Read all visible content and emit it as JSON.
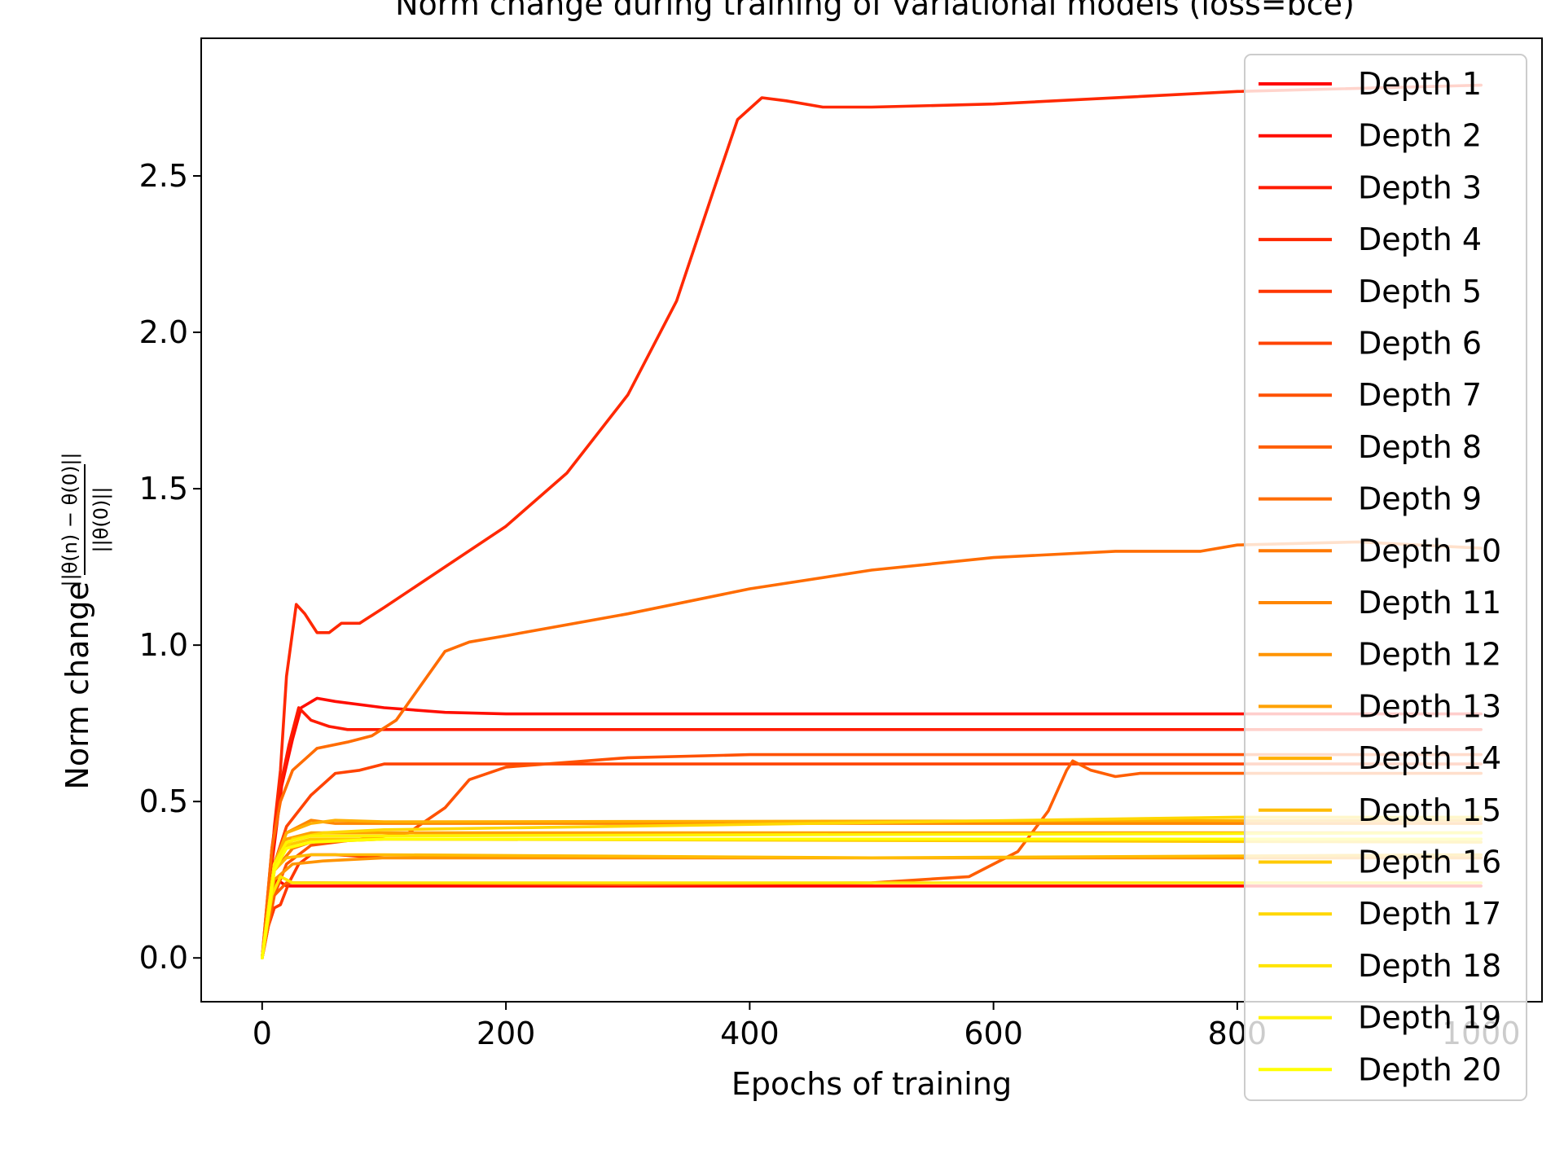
{
  "chart_data": {
    "type": "line",
    "title": "Norm change during training of variational models (loss=bce)",
    "xlabel": "Epochs of training",
    "ylabel_prefix": "Norm change",
    "ylabel_num": "||θ(n) − θ(0)||",
    "ylabel_den": "||θ(0)||",
    "xlim": [
      -50,
      1050
    ],
    "ylim": [
      -0.14,
      2.94
    ],
    "xticks": [
      0,
      200,
      400,
      600,
      800,
      1000
    ],
    "xtick_labels": [
      "0",
      "200",
      "400",
      "600",
      "800",
      "1000"
    ],
    "yticks": [
      0.0,
      0.5,
      1.0,
      1.5,
      2.0,
      2.5
    ],
    "ytick_labels": [
      "0.0",
      "0.5",
      "1.0",
      "1.5",
      "2.0",
      "2.5"
    ],
    "grid": false,
    "legend_position": "upper right",
    "series": [
      {
        "name": "Depth 1",
        "color": "#ff0000",
        "points": [
          [
            0,
            0
          ],
          [
            6,
            0.16
          ],
          [
            12,
            0.25
          ],
          [
            20,
            0.23
          ],
          [
            35,
            0.23
          ],
          [
            100,
            0.23
          ],
          [
            1000,
            0.23
          ]
        ]
      },
      {
        "name": "Depth 2",
        "color": "#ff0d00",
        "points": [
          [
            0,
            0
          ],
          [
            8,
            0.3
          ],
          [
            16,
            0.55
          ],
          [
            25,
            0.7
          ],
          [
            32,
            0.8
          ],
          [
            45,
            0.83
          ],
          [
            60,
            0.82
          ],
          [
            100,
            0.8
          ],
          [
            150,
            0.785
          ],
          [
            200,
            0.78
          ],
          [
            1000,
            0.78
          ]
        ]
      },
      {
        "name": "Depth 3",
        "color": "#ff1b00",
        "points": [
          [
            0,
            0
          ],
          [
            8,
            0.35
          ],
          [
            15,
            0.55
          ],
          [
            22,
            0.68
          ],
          [
            30,
            0.8
          ],
          [
            40,
            0.76
          ],
          [
            55,
            0.74
          ],
          [
            70,
            0.73
          ],
          [
            90,
            0.73
          ],
          [
            200,
            0.73
          ],
          [
            1000,
            0.73
          ]
        ]
      },
      {
        "name": "Depth 4",
        "color": "#ff2800",
        "points": [
          [
            0,
            0
          ],
          [
            6,
            0.2
          ],
          [
            10,
            0.42
          ],
          [
            15,
            0.6
          ],
          [
            20,
            0.9
          ],
          [
            28,
            1.13
          ],
          [
            35,
            1.1
          ],
          [
            45,
            1.04
          ],
          [
            55,
            1.04
          ],
          [
            65,
            1.07
          ],
          [
            80,
            1.07
          ],
          [
            100,
            1.12
          ],
          [
            150,
            1.25
          ],
          [
            200,
            1.38
          ],
          [
            250,
            1.55
          ],
          [
            300,
            1.8
          ],
          [
            340,
            2.1
          ],
          [
            370,
            2.45
          ],
          [
            390,
            2.68
          ],
          [
            410,
            2.75
          ],
          [
            430,
            2.74
          ],
          [
            460,
            2.72
          ],
          [
            500,
            2.72
          ],
          [
            600,
            2.73
          ],
          [
            800,
            2.77
          ],
          [
            1000,
            2.79
          ]
        ]
      },
      {
        "name": "Depth 5",
        "color": "#ff3600",
        "points": [
          [
            0,
            0
          ],
          [
            5,
            0.1
          ],
          [
            10,
            0.16
          ],
          [
            15,
            0.17
          ],
          [
            22,
            0.24
          ],
          [
            30,
            0.3
          ],
          [
            40,
            0.33
          ],
          [
            60,
            0.33
          ],
          [
            100,
            0.32
          ],
          [
            1000,
            0.32
          ]
        ]
      },
      {
        "name": "Depth 6",
        "color": "#ff4300",
        "points": [
          [
            0,
            0
          ],
          [
            10,
            0.3
          ],
          [
            20,
            0.42
          ],
          [
            40,
            0.52
          ],
          [
            60,
            0.59
          ],
          [
            80,
            0.6
          ],
          [
            100,
            0.62
          ],
          [
            150,
            0.62
          ],
          [
            200,
            0.62
          ],
          [
            1000,
            0.62
          ]
        ]
      },
      {
        "name": "Depth 7",
        "color": "#ff5100",
        "points": [
          [
            0,
            0
          ],
          [
            10,
            0.2
          ],
          [
            20,
            0.3
          ],
          [
            40,
            0.36
          ],
          [
            80,
            0.38
          ],
          [
            120,
            0.4
          ],
          [
            150,
            0.48
          ],
          [
            170,
            0.57
          ],
          [
            200,
            0.61
          ],
          [
            300,
            0.64
          ],
          [
            400,
            0.65
          ],
          [
            500,
            0.65
          ],
          [
            1000,
            0.65
          ]
        ]
      },
      {
        "name": "Depth 8",
        "color": "#ff5e00",
        "points": [
          [
            0,
            0
          ],
          [
            10,
            0.2
          ],
          [
            20,
            0.24
          ],
          [
            50,
            0.24
          ],
          [
            300,
            0.235
          ],
          [
            500,
            0.24
          ],
          [
            580,
            0.26
          ],
          [
            620,
            0.34
          ],
          [
            645,
            0.47
          ],
          [
            660,
            0.6
          ],
          [
            665,
            0.63
          ],
          [
            680,
            0.6
          ],
          [
            700,
            0.58
          ],
          [
            720,
            0.59
          ],
          [
            800,
            0.59
          ],
          [
            1000,
            0.59
          ]
        ]
      },
      {
        "name": "Depth 9",
        "color": "#ff6c00",
        "points": [
          [
            0,
            0
          ],
          [
            8,
            0.35
          ],
          [
            15,
            0.5
          ],
          [
            25,
            0.6
          ],
          [
            45,
            0.67
          ],
          [
            70,
            0.69
          ],
          [
            90,
            0.71
          ],
          [
            110,
            0.76
          ],
          [
            130,
            0.87
          ],
          [
            150,
            0.98
          ],
          [
            170,
            1.01
          ],
          [
            200,
            1.03
          ],
          [
            300,
            1.1
          ],
          [
            400,
            1.18
          ],
          [
            500,
            1.24
          ],
          [
            600,
            1.28
          ],
          [
            700,
            1.3
          ],
          [
            770,
            1.3
          ],
          [
            800,
            1.32
          ],
          [
            900,
            1.33
          ],
          [
            1000,
            1.31
          ]
        ]
      },
      {
        "name": "Depth 10",
        "color": "#ff7900",
        "points": [
          [
            0,
            0
          ],
          [
            10,
            0.28
          ],
          [
            25,
            0.35
          ],
          [
            40,
            0.37
          ],
          [
            100,
            0.38
          ],
          [
            1000,
            0.38
          ]
        ]
      },
      {
        "name": "Depth 11",
        "color": "#ff8600",
        "points": [
          [
            0,
            0
          ],
          [
            10,
            0.3
          ],
          [
            20,
            0.4
          ],
          [
            40,
            0.44
          ],
          [
            60,
            0.43
          ],
          [
            100,
            0.43
          ],
          [
            1000,
            0.43
          ]
        ]
      },
      {
        "name": "Depth 12",
        "color": "#ff9400",
        "points": [
          [
            0,
            0
          ],
          [
            10,
            0.25
          ],
          [
            25,
            0.3
          ],
          [
            50,
            0.31
          ],
          [
            100,
            0.32
          ],
          [
            1000,
            0.32
          ]
        ]
      },
      {
        "name": "Depth 13",
        "color": "#ffa100",
        "points": [
          [
            0,
            0
          ],
          [
            10,
            0.3
          ],
          [
            20,
            0.38
          ],
          [
            40,
            0.4
          ],
          [
            100,
            0.4
          ],
          [
            1000,
            0.4
          ]
        ]
      },
      {
        "name": "Depth 14",
        "color": "#ffaf00",
        "points": [
          [
            0,
            0
          ],
          [
            10,
            0.3
          ],
          [
            20,
            0.4
          ],
          [
            40,
            0.43
          ],
          [
            60,
            0.44
          ],
          [
            100,
            0.435
          ],
          [
            1000,
            0.44
          ]
        ]
      },
      {
        "name": "Depth 15",
        "color": "#ffbc00",
        "points": [
          [
            0,
            0
          ],
          [
            10,
            0.28
          ],
          [
            20,
            0.32
          ],
          [
            40,
            0.33
          ],
          [
            100,
            0.33
          ],
          [
            500,
            0.32
          ],
          [
            1000,
            0.33
          ]
        ]
      },
      {
        "name": "Depth 16",
        "color": "#ffca00",
        "points": [
          [
            0,
            0
          ],
          [
            10,
            0.3
          ],
          [
            20,
            0.36
          ],
          [
            40,
            0.38
          ],
          [
            100,
            0.38
          ],
          [
            1000,
            0.37
          ]
        ]
      },
      {
        "name": "Depth 17",
        "color": "#ffd700",
        "points": [
          [
            0,
            0
          ],
          [
            10,
            0.3
          ],
          [
            25,
            0.38
          ],
          [
            50,
            0.4
          ],
          [
            100,
            0.41
          ],
          [
            800,
            0.45
          ],
          [
            1000,
            0.45
          ]
        ]
      },
      {
        "name": "Depth 18",
        "color": "#ffe400",
        "points": [
          [
            0,
            0
          ],
          [
            8,
            0.2
          ],
          [
            15,
            0.26
          ],
          [
            25,
            0.24
          ],
          [
            40,
            0.24
          ],
          [
            100,
            0.24
          ],
          [
            1000,
            0.24
          ]
        ]
      },
      {
        "name": "Depth 19",
        "color": "#fff200",
        "points": [
          [
            0,
            0
          ],
          [
            10,
            0.3
          ],
          [
            20,
            0.37
          ],
          [
            40,
            0.39
          ],
          [
            100,
            0.39
          ],
          [
            1000,
            0.4
          ]
        ]
      },
      {
        "name": "Depth 20",
        "color": "#ffff00",
        "points": [
          [
            0,
            0
          ],
          [
            10,
            0.28
          ],
          [
            20,
            0.35
          ],
          [
            40,
            0.37
          ],
          [
            100,
            0.38
          ],
          [
            1000,
            0.38
          ]
        ]
      }
    ]
  }
}
